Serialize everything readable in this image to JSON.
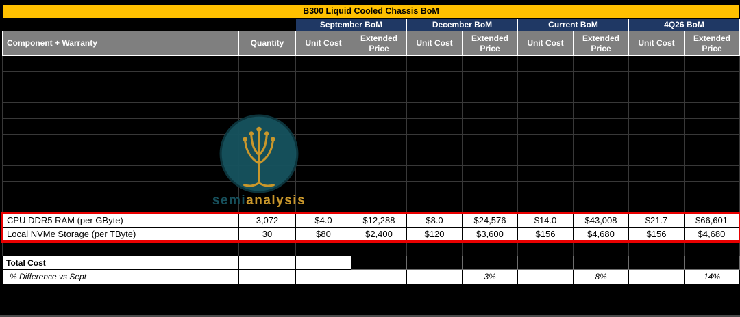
{
  "title": "B300 Liquid Cooled Chassis BoM",
  "colors": {
    "title_bg": "#FFC000",
    "group_bg": "#1F3864",
    "subheader_bg": "#7F7F7F",
    "highlight_border": "#E90000",
    "watermark_teal": "#17505C",
    "watermark_gold": "#C9972B"
  },
  "groups": [
    {
      "label": "September BoM"
    },
    {
      "label": "December BoM"
    },
    {
      "label": "Current BoM"
    },
    {
      "label": "4Q26 BoM"
    }
  ],
  "subheaders": {
    "component": "Component + Warranty",
    "quantity": "Quantity",
    "unit_cost": "Unit Cost",
    "extended_price": "Extended Price"
  },
  "redacted_row_count": 10,
  "product_rows": [
    {
      "component": "CPU DDR5 RAM (per GByte)",
      "quantity": "3,072",
      "values": [
        "$4.0",
        "$12,288",
        "$8.0",
        "$24,576",
        "$14.0",
        "$43,008",
        "$21.7",
        "$66,601"
      ]
    },
    {
      "component": "Local NVMe Storage (per TByte)",
      "quantity": "30",
      "values": [
        "$80",
        "$2,400",
        "$120",
        "$3,600",
        "$156",
        "$4,680",
        "$156",
        "$4,680"
      ]
    }
  ],
  "total_row": {
    "label": "Total Cost"
  },
  "diff_row": {
    "label": "% Difference vs Sept",
    "december": "3%",
    "current": "8%",
    "q4_26": "14%"
  },
  "watermark": {
    "part1": "semi",
    "part2": "analysis"
  }
}
